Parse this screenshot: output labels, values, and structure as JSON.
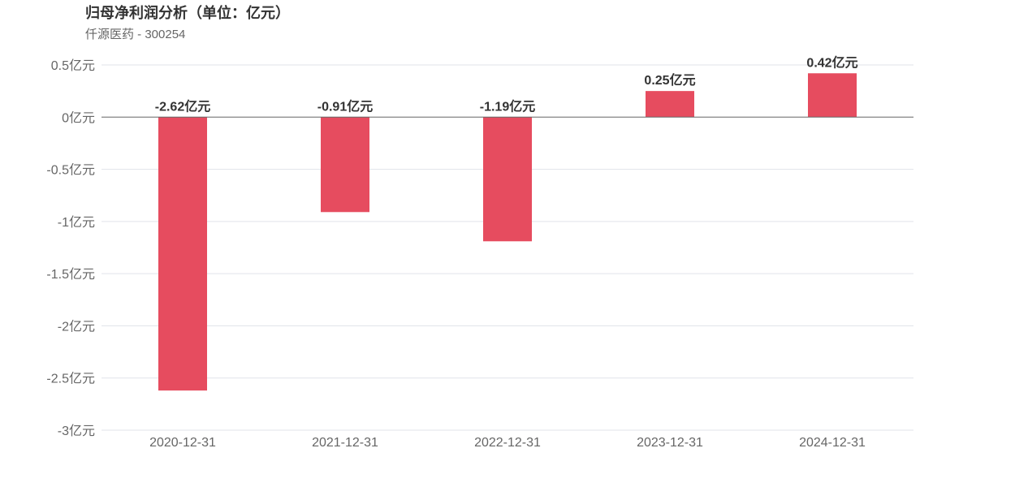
{
  "chart_data": {
    "type": "bar",
    "title": "归母净利润分析（单位：亿元）",
    "subtitle": "仟源医药 - 300254",
    "categories": [
      "2020-12-31",
      "2021-12-31",
      "2022-12-31",
      "2023-12-31",
      "2024-12-31"
    ],
    "values": [
      -2.62,
      -0.91,
      -1.19,
      0.25,
      0.42
    ],
    "data_labels": [
      "-2.62亿元",
      "-0.91亿元",
      "-1.19亿元",
      "0.25亿元",
      "0.42亿元"
    ],
    "yticks": [
      0.5,
      0,
      -0.5,
      -1,
      -1.5,
      -2,
      -2.5,
      -3
    ],
    "ytick_labels": [
      "0.5亿元",
      "0亿元",
      "-0.5亿元",
      "-1亿元",
      "-1.5亿元",
      "-2亿元",
      "-2.5亿元",
      "-3亿元"
    ],
    "ylim": [
      -3,
      0.5
    ],
    "grid": true,
    "bar_color": "#e64c5f",
    "grid_color": "#e0e3ea",
    "axis_color": "#666666"
  }
}
